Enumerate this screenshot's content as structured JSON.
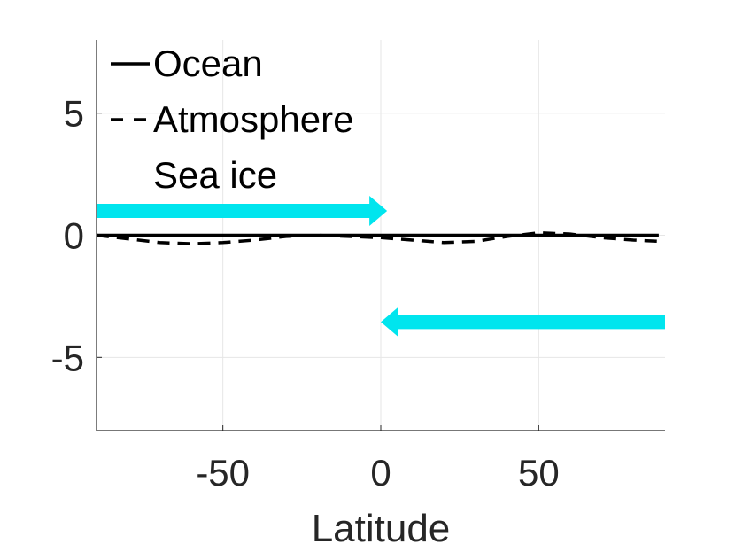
{
  "chart_data": {
    "type": "line",
    "xlabel": "Latitude",
    "ylabel": "",
    "xlim": [
      -90,
      90
    ],
    "ylim": [
      -8,
      8
    ],
    "xticks": [
      -50,
      0,
      50
    ],
    "xtick_labels": [
      "-50",
      "0",
      "50"
    ],
    "yticks": [
      -5,
      0,
      5
    ],
    "ytick_labels": [
      "-5",
      "0",
      "5"
    ],
    "grid": true,
    "legend_position": "top-left",
    "series": [
      {
        "name": "Ocean",
        "style": "solid",
        "color": "#000000",
        "x": [
          -90,
          -60,
          -30,
          0,
          30,
          60,
          88
        ],
        "y": [
          0.0,
          0.0,
          0.0,
          0.0,
          0.0,
          0.0,
          0.0
        ]
      },
      {
        "name": "Atmosphere",
        "style": "dashed",
        "color": "#000000",
        "x": [
          -90,
          -80,
          -70,
          -60,
          -50,
          -40,
          -30,
          -20,
          -10,
          0,
          10,
          20,
          30,
          40,
          50,
          60,
          70,
          80,
          88
        ],
        "y": [
          0.0,
          -0.15,
          -0.3,
          -0.35,
          -0.3,
          -0.2,
          -0.05,
          0.0,
          -0.05,
          -0.1,
          -0.2,
          -0.3,
          -0.25,
          -0.05,
          0.1,
          0.05,
          -0.1,
          -0.2,
          -0.25
        ]
      },
      {
        "name": "Sea ice",
        "style": "none",
        "color": "#000000",
        "x": [],
        "y": []
      }
    ],
    "annotations": [
      {
        "type": "arrow",
        "color": "#00e5ee",
        "from": [
          -90,
          1.0
        ],
        "to": [
          2,
          1.0
        ]
      },
      {
        "type": "arrow",
        "color": "#00e5ee",
        "from": [
          90,
          -3.55
        ],
        "to": [
          0,
          -3.55
        ]
      }
    ]
  }
}
